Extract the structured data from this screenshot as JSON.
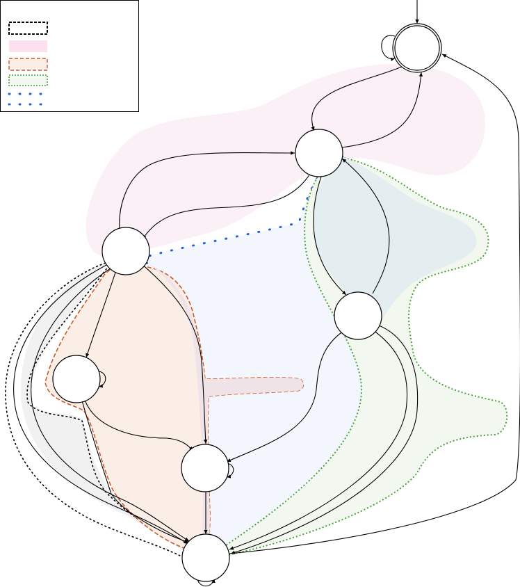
{
  "diagram": {
    "type": "state-transition-diagram",
    "legend": {
      "entries": [
        {
          "style": "dashed-black-box",
          "label": ""
        },
        {
          "style": "pink-fill",
          "label": ""
        },
        {
          "style": "orange-dashed-fill",
          "label": ""
        },
        {
          "style": "green-dotted-box",
          "label": ""
        },
        {
          "style": "blue-dotted-line",
          "label": ""
        }
      ]
    },
    "colors": {
      "pink_region": "#fcf0f7",
      "orange_region": "#fbeee7",
      "orange_border": "#cc5a2a",
      "green_region": "#f2f8ef",
      "green_border": "#4a9f3a",
      "blue_region": "#f2f5fc",
      "blue_dots": "#1f5fd6",
      "teal_overlap": "#e6eef0",
      "gray_region": "#f1f1f1",
      "node_stroke": "#000000"
    },
    "nodes": [
      {
        "id": "n0",
        "label": "",
        "initial": true,
        "accepting": true,
        "self_loop": true
      },
      {
        "id": "n1",
        "label": "",
        "initial": false,
        "accepting": false,
        "self_loop": false
      },
      {
        "id": "n2",
        "label": "",
        "initial": false,
        "accepting": false,
        "self_loop": false
      },
      {
        "id": "n3",
        "label": "",
        "initial": false,
        "accepting": false,
        "self_loop": false
      },
      {
        "id": "n4",
        "label": "",
        "initial": false,
        "accepting": false,
        "self_loop": true
      },
      {
        "id": "n5",
        "label": "",
        "initial": false,
        "accepting": false,
        "self_loop": true
      },
      {
        "id": "n6",
        "label": "",
        "initial": false,
        "accepting": false,
        "self_loop": true
      }
    ],
    "edges": [
      {
        "from": "n0",
        "to": "n1",
        "label": ""
      },
      {
        "from": "n1",
        "to": "n0",
        "label": ""
      },
      {
        "from": "n2",
        "to": "n1",
        "label": ""
      },
      {
        "from": "n1",
        "to": "n2",
        "label": ""
      },
      {
        "from": "n1",
        "to": "n3",
        "label": ""
      },
      {
        "from": "n3",
        "to": "n1",
        "label": ""
      },
      {
        "from": "n2",
        "to": "n4",
        "label": ""
      },
      {
        "from": "n2",
        "to": "n5",
        "label": ""
      },
      {
        "from": "n4",
        "to": "n5",
        "label": ""
      },
      {
        "from": "n4",
        "to": "n6",
        "label": ""
      },
      {
        "from": "n3",
        "to": "n5",
        "label": ""
      },
      {
        "from": "n5",
        "to": "n6",
        "label": ""
      },
      {
        "from": "n2",
        "to": "n6",
        "label": ""
      },
      {
        "from": "n2",
        "to": "n6",
        "label": ""
      },
      {
        "from": "n3",
        "to": "n6",
        "label": ""
      },
      {
        "from": "n6",
        "to": "n0",
        "label": ""
      }
    ]
  }
}
